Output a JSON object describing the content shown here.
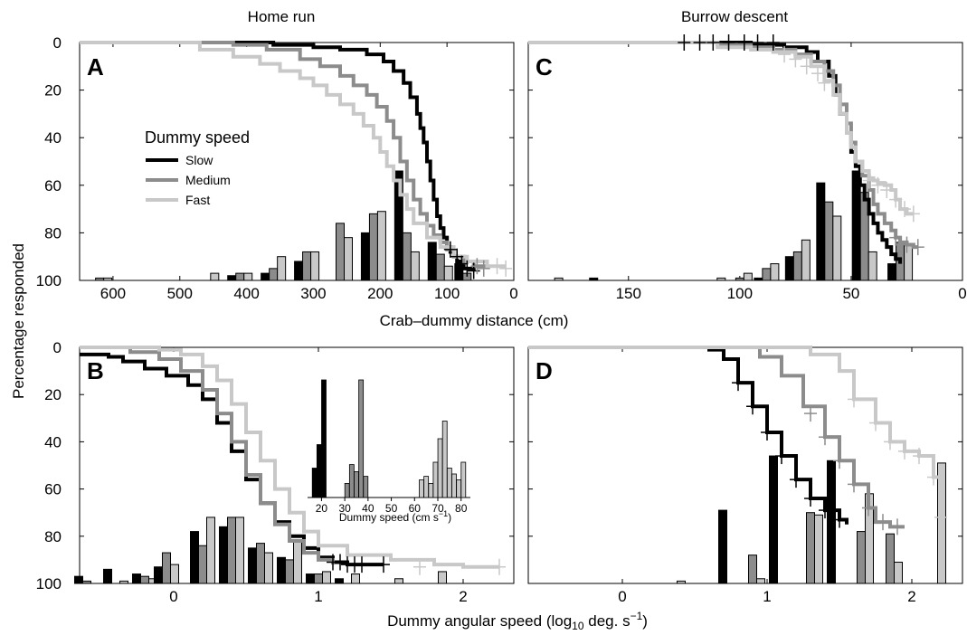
{
  "figure": {
    "col_titles": [
      "Home run",
      "Burrow descent"
    ],
    "ylabel": "Percentage responded",
    "xlabel_top": "Crab–dummy distance (cm)",
    "xlabel_bottom_pre": "Dummy angular speed (log",
    "xlabel_bottom_sub": "10",
    "xlabel_bottom_post": " deg. s",
    "xlabel_bottom_sup": "−1",
    "xlabel_bottom_close": ")",
    "panel_letters": [
      "A",
      "C",
      "B",
      "D"
    ]
  },
  "legend": {
    "title": "Dummy speed",
    "items": [
      {
        "label": "Slow",
        "color": "#000000"
      },
      {
        "label": "Medium",
        "color": "#8c8c8c"
      },
      {
        "label": "Fast",
        "color": "#c8c8c8"
      }
    ]
  },
  "inset": {
    "xlabel_pre": "Dummy speed (cm s",
    "xlabel_sup": "−1",
    "xlabel_post": ")",
    "xticks": [
      20,
      30,
      40,
      50,
      60,
      70,
      80
    ]
  },
  "chart_data": [
    {
      "panel": "A",
      "type": "line",
      "title": "Home run",
      "xlabel": "Crab–dummy distance (cm)",
      "ylabel": "Percentage responded",
      "xlim": [
        650,
        0
      ],
      "ylim": [
        0,
        100
      ],
      "xticks": [
        600,
        500,
        400,
        300,
        200,
        100,
        0
      ],
      "yticks": [
        0,
        20,
        40,
        60,
        80,
        100
      ],
      "series": [
        {
          "name": "Slow",
          "color": "#000000",
          "x": [
            650,
            450,
            360,
            300,
            260,
            220,
            195,
            180,
            165,
            155,
            145,
            140,
            135,
            130,
            125,
            120,
            115,
            110,
            105,
            100,
            95,
            90,
            85,
            80,
            75,
            60
          ],
          "y": [
            0,
            0,
            1,
            2,
            3,
            5,
            8,
            12,
            17,
            23,
            30,
            36,
            42,
            50,
            58,
            66,
            73,
            78,
            82,
            86,
            88,
            90,
            92,
            94,
            95,
            96
          ]
        },
        {
          "name": "Medium",
          "color": "#8c8c8c",
          "x": [
            650,
            500,
            420,
            370,
            320,
            290,
            260,
            240,
            220,
            205,
            190,
            180,
            170,
            160,
            150,
            140,
            130,
            120,
            110,
            100,
            90,
            75,
            60,
            40
          ],
          "y": [
            0,
            0,
            1,
            3,
            7,
            10,
            14,
            18,
            22,
            27,
            33,
            40,
            50,
            58,
            66,
            72,
            77,
            81,
            84,
            87,
            90,
            92,
            94,
            95
          ]
        },
        {
          "name": "Fast",
          "color": "#c8c8c8",
          "x": [
            650,
            520,
            470,
            420,
            380,
            350,
            320,
            300,
            280,
            260,
            240,
            225,
            210,
            200,
            190,
            180,
            170,
            160,
            150,
            130,
            110,
            90,
            70,
            40,
            15
          ],
          "y": [
            0,
            0,
            3,
            6,
            9,
            12,
            15,
            18,
            22,
            26,
            30,
            35,
            40,
            46,
            52,
            58,
            64,
            70,
            76,
            82,
            86,
            90,
            92,
            94,
            95
          ]
        }
      ],
      "censored_ticks": [
        {
          "series": "Slow",
          "x": [
            95,
            85,
            78,
            70,
            60
          ],
          "y": [
            87,
            90,
            93,
            95,
            96
          ]
        },
        {
          "series": "Medium",
          "x": [
            55,
            45
          ],
          "y": [
            94,
            95
          ]
        },
        {
          "series": "Fast",
          "x": [
            25,
            12
          ],
          "y": [
            94,
            95
          ]
        }
      ],
      "bars": {
        "x_centers": [
          620,
          460,
          410,
          360,
          310,
          260,
          210,
          160,
          110,
          70
        ],
        "Slow": [
          0,
          0,
          2,
          3,
          8,
          0,
          20,
          46,
          16,
          7
        ],
        "Medium": [
          1,
          0,
          3,
          5,
          12,
          24,
          28,
          20,
          11,
          3
        ],
        "Fast": [
          1,
          3,
          3,
          10,
          12,
          18,
          29,
          12,
          6,
          0
        ]
      }
    },
    {
      "panel": "C",
      "type": "line",
      "title": "Burrow descent",
      "xlabel": "Crab–dummy distance (cm)",
      "ylabel": "Percentage responded",
      "xlim": [
        195,
        0
      ],
      "ylim": [
        0,
        100
      ],
      "xticks": [
        150,
        100,
        50,
        0
      ],
      "yticks": [
        0,
        20,
        40,
        60,
        80,
        100
      ],
      "series": [
        {
          "name": "Slow",
          "color": "#000000",
          "x": [
            195,
            140,
            110,
            95,
            80,
            70,
            65,
            60,
            57,
            55,
            52,
            50,
            48,
            46,
            44,
            42,
            40,
            38,
            36,
            34,
            32,
            30,
            28
          ],
          "y": [
            0,
            0,
            0,
            1,
            2,
            4,
            8,
            14,
            22,
            30,
            38,
            46,
            52,
            60,
            66,
            72,
            76,
            80,
            83,
            86,
            89,
            91,
            93
          ]
        },
        {
          "name": "Medium",
          "color": "#8c8c8c",
          "x": [
            195,
            140,
            110,
            95,
            85,
            75,
            68,
            62,
            58,
            55,
            52,
            50,
            48,
            45,
            42,
            40,
            38,
            35,
            32,
            30,
            28,
            25,
            22,
            20
          ],
          "y": [
            0,
            0,
            1,
            2,
            3,
            5,
            8,
            12,
            18,
            26,
            34,
            42,
            50,
            56,
            62,
            68,
            72,
            76,
            79,
            82,
            84,
            85,
            86,
            86
          ]
        },
        {
          "name": "Fast",
          "color": "#c8c8c8",
          "x": [
            195,
            140,
            110,
            95,
            85,
            75,
            68,
            62,
            58,
            55,
            52,
            50,
            48,
            45,
            42,
            40,
            38,
            35,
            32,
            30,
            28,
            25,
            22
          ],
          "y": [
            0,
            0,
            2,
            3,
            4,
            6,
            10,
            16,
            22,
            30,
            38,
            44,
            50,
            54,
            57,
            58,
            59,
            60,
            62,
            66,
            70,
            72,
            72
          ]
        }
      ],
      "censored_ticks": [
        {
          "series": "Slow",
          "x": [
            125,
            118,
            112,
            105,
            98,
            92,
            85
          ],
          "y": [
            0,
            0,
            0,
            0,
            0,
            0,
            0
          ]
        },
        {
          "series": "Fast",
          "x": [
            80,
            75,
            70,
            65,
            62
          ],
          "y": [
            5,
            7,
            10,
            13,
            17
          ]
        },
        {
          "series": "Fast",
          "x": [
            42,
            38,
            34,
            30,
            26,
            22
          ],
          "y": [
            58,
            60,
            62,
            66,
            70,
            72
          ]
        },
        {
          "series": "Medium",
          "x": [
            30,
            25,
            20
          ],
          "y": [
            82,
            85,
            86
          ]
        }
      ],
      "bars": {
        "x_centers": [
          185,
          162,
          112,
          100,
          88,
          74,
          60,
          44,
          28
        ],
        "Slow": [
          0,
          1,
          0,
          0,
          1,
          10,
          41,
          46,
          7
        ],
        "Medium": [
          0,
          0,
          0,
          1,
          5,
          12,
          33,
          37,
          16
        ],
        "Fast": [
          1,
          0,
          1,
          3,
          7,
          17,
          27,
          12,
          15
        ]
      }
    },
    {
      "panel": "B",
      "type": "line",
      "xlabel": "Dummy angular speed (log10 deg. s−1)",
      "ylabel": "Percentage responded",
      "xlim": [
        -0.65,
        2.35
      ],
      "ylim": [
        0,
        100
      ],
      "xticks": [
        0,
        1,
        2
      ],
      "yticks": [
        0,
        20,
        40,
        60,
        80,
        100
      ],
      "series": [
        {
          "name": "Slow",
          "color": "#000000",
          "x": [
            -0.65,
            -0.45,
            -0.35,
            -0.2,
            -0.05,
            0.1,
            0.2,
            0.3,
            0.4,
            0.5,
            0.6,
            0.7,
            0.8,
            0.9,
            1.0,
            1.1,
            1.2,
            1.45
          ],
          "y": [
            3,
            4,
            6,
            9,
            12,
            16,
            22,
            32,
            44,
            56,
            66,
            74,
            80,
            85,
            89,
            91,
            92,
            92
          ]
        },
        {
          "name": "Medium",
          "color": "#8c8c8c",
          "x": [
            -0.65,
            -0.45,
            -0.3,
            -0.1,
            0.05,
            0.2,
            0.3,
            0.4,
            0.5,
            0.6,
            0.7,
            0.8,
            0.9,
            1.0,
            1.1
          ],
          "y": [
            0,
            0,
            2,
            5,
            10,
            18,
            28,
            40,
            54,
            66,
            75,
            82,
            87,
            90,
            92
          ]
        },
        {
          "name": "Fast",
          "color": "#c8c8c8",
          "x": [
            -0.65,
            -0.3,
            -0.1,
            0.05,
            0.2,
            0.3,
            0.4,
            0.5,
            0.6,
            0.7,
            0.8,
            0.9,
            1.0,
            1.2,
            1.5,
            1.8,
            2.0,
            2.25
          ],
          "y": [
            0,
            0,
            1,
            3,
            8,
            14,
            24,
            36,
            48,
            60,
            70,
            78,
            84,
            88,
            90,
            92,
            93,
            93
          ]
        }
      ],
      "censored_ticks": [
        {
          "series": "Slow",
          "x": [
            1.1,
            1.15,
            1.2,
            1.25,
            1.3,
            1.45
          ],
          "y": [
            91,
            91,
            92,
            92,
            92,
            92
          ]
        },
        {
          "series": "Fast",
          "x": [
            1.7,
            2.25
          ],
          "y": [
            93,
            93
          ]
        }
      ],
      "bars": {
        "x_centers": [
          -0.6,
          -0.4,
          -0.2,
          -0.05,
          0.2,
          0.4,
          0.6,
          0.8,
          1.0,
          1.2,
          1.5,
          1.8
        ],
        "Slow": [
          3,
          6,
          4,
          7,
          22,
          24,
          15,
          11,
          4,
          2,
          0,
          0
        ],
        "Medium": [
          1,
          0,
          3,
          13,
          16,
          28,
          17,
          10,
          4,
          0,
          0,
          0
        ],
        "Fast": [
          0,
          1,
          2,
          8,
          28,
          28,
          13,
          18,
          5,
          4,
          2,
          5
        ]
      },
      "inset": {
        "type": "bar",
        "xlabel": "Dummy speed (cm s−1)",
        "xlim": [
          14,
          84
        ],
        "xticks": [
          20,
          30,
          40,
          50,
          60,
          70,
          80
        ],
        "Slow": {
          "x": [
            17,
            19,
            21
          ],
          "y": [
            25,
            45,
            100
          ]
        },
        "Medium": {
          "x": [
            31,
            33,
            35,
            37,
            39
          ],
          "y": [
            12,
            28,
            22,
            100,
            18
          ]
        },
        "Fast": {
          "x": [
            63,
            65,
            67,
            69,
            71,
            73,
            75,
            77,
            79,
            81
          ],
          "y": [
            15,
            18,
            12,
            30,
            50,
            65,
            25,
            20,
            15,
            30
          ]
        }
      }
    },
    {
      "panel": "D",
      "type": "line",
      "xlabel": "Dummy angular speed (log10 deg. s−1)",
      "ylabel": "Percentage responded",
      "xlim": [
        -0.65,
        2.35
      ],
      "ylim": [
        0,
        100
      ],
      "xticks": [
        0,
        1,
        2
      ],
      "yticks": [
        0,
        20,
        40,
        60,
        80,
        100
      ],
      "series": [
        {
          "name": "Slow",
          "color": "#000000",
          "x": [
            -0.65,
            0.4,
            0.6,
            0.7,
            0.8,
            0.9,
            1.0,
            1.1,
            1.2,
            1.3,
            1.4,
            1.5,
            1.55
          ],
          "y": [
            0,
            0,
            1,
            5,
            15,
            25,
            36,
            46,
            56,
            64,
            69,
            73,
            75
          ]
        },
        {
          "name": "Medium",
          "color": "#8c8c8c",
          "x": [
            -0.65,
            0.8,
            0.95,
            1.1,
            1.25,
            1.4,
            1.5,
            1.6,
            1.7,
            1.75,
            1.85,
            1.95
          ],
          "y": [
            0,
            0,
            4,
            12,
            25,
            38,
            48,
            58,
            68,
            74,
            76,
            76
          ]
        },
        {
          "name": "Fast",
          "color": "#c8c8c8",
          "x": [
            -0.65,
            1.1,
            1.3,
            1.5,
            1.6,
            1.75,
            1.85,
            1.95,
            2.05,
            2.15,
            2.2
          ],
          "y": [
            0,
            0,
            3,
            10,
            22,
            32,
            40,
            44,
            46,
            55,
            72
          ]
        }
      ],
      "censored_ticks": [
        {
          "series": "Slow",
          "x": [
            0.8,
            0.9,
            1.0,
            1.1,
            1.2,
            1.3,
            1.4,
            1.5
          ],
          "y": [
            15,
            25,
            36,
            46,
            56,
            64,
            69,
            73
          ]
        },
        {
          "series": "Medium",
          "x": [
            1.3,
            1.4,
            1.5,
            1.6,
            1.7,
            1.8,
            1.9
          ],
          "y": [
            28,
            38,
            48,
            58,
            68,
            74,
            76
          ]
        },
        {
          "series": "Fast",
          "x": [
            1.6,
            1.75,
            1.85,
            1.95,
            2.05,
            2.15,
            2.2
          ],
          "y": [
            22,
            32,
            40,
            44,
            46,
            55,
            72
          ]
        }
      ],
      "bars": {
        "x_centers": [
          0.35,
          0.75,
          0.9,
          1.1,
          1.3,
          1.5,
          1.65,
          1.85,
          2.15
        ],
        "Slow": [
          0,
          31,
          0,
          54,
          0,
          52,
          0,
          0,
          0
        ],
        "Medium": [
          0,
          0,
          12,
          0,
          30,
          0,
          22,
          21,
          0
        ],
        "Fast": [
          1,
          0,
          2,
          0,
          29,
          0,
          38,
          9,
          51
        ]
      }
    }
  ]
}
